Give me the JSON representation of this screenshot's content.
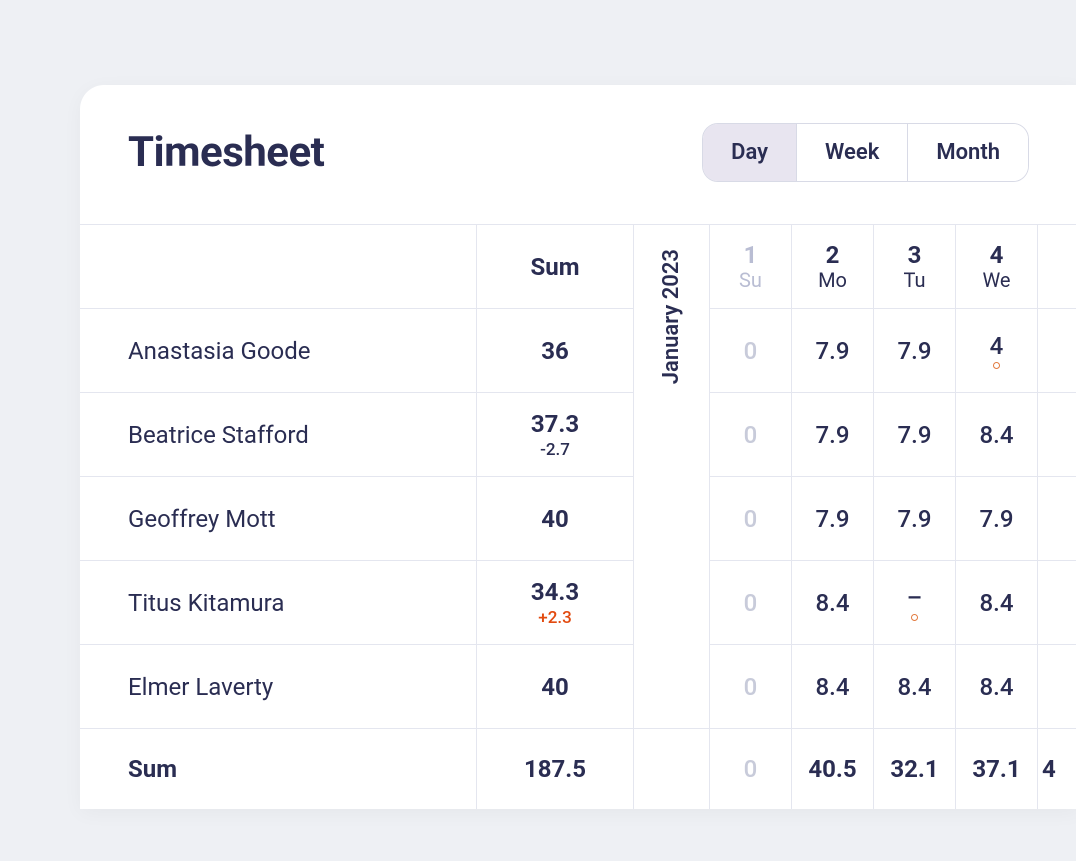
{
  "title": "Timesheet",
  "tabs": {
    "day": "Day",
    "week": "Week",
    "month": "Month",
    "active": "day"
  },
  "columns": {
    "sum_label": "Sum",
    "month_label": "January 2023",
    "days": [
      {
        "num": "1",
        "label": "Su",
        "muted": true
      },
      {
        "num": "2",
        "label": "Mo",
        "muted": false
      },
      {
        "num": "3",
        "label": "Tu",
        "muted": false
      },
      {
        "num": "4",
        "label": "We",
        "muted": false
      }
    ]
  },
  "rows": [
    {
      "name": "Anastasia Goode",
      "sum": "36",
      "delta": null,
      "cells": [
        {
          "v": "0",
          "zero": true
        },
        {
          "v": "7.9"
        },
        {
          "v": "7.9"
        },
        {
          "v": "4",
          "dot": true
        }
      ]
    },
    {
      "name": "Beatrice Stafford",
      "sum": "37.3",
      "delta": {
        "text": "-2.7",
        "sign": "neg"
      },
      "cells": [
        {
          "v": "0",
          "zero": true
        },
        {
          "v": "7.9"
        },
        {
          "v": "7.9"
        },
        {
          "v": "8.4"
        }
      ]
    },
    {
      "name": "Geoffrey Mott",
      "sum": "40",
      "delta": null,
      "cells": [
        {
          "v": "0",
          "zero": true
        },
        {
          "v": "7.9"
        },
        {
          "v": "7.9"
        },
        {
          "v": "7.9"
        }
      ]
    },
    {
      "name": "Titus Kitamura",
      "sum": "34.3",
      "delta": {
        "text": "+2.3",
        "sign": "pos"
      },
      "cells": [
        {
          "v": "0",
          "zero": true
        },
        {
          "v": "8.4"
        },
        {
          "v": "–",
          "dash": true,
          "dot": true
        },
        {
          "v": "8.4"
        }
      ]
    },
    {
      "name": "Elmer Laverty",
      "sum": "40",
      "delta": null,
      "cells": [
        {
          "v": "0",
          "zero": true
        },
        {
          "v": "8.4"
        },
        {
          "v": "8.4"
        },
        {
          "v": "8.4"
        }
      ]
    }
  ],
  "totals": {
    "label": "Sum",
    "sum": "187.5",
    "cells": [
      {
        "v": "0",
        "zero": true
      },
      {
        "v": "40.5"
      },
      {
        "v": "32.1"
      },
      {
        "v": "37.1"
      }
    ],
    "peek": "4"
  }
}
